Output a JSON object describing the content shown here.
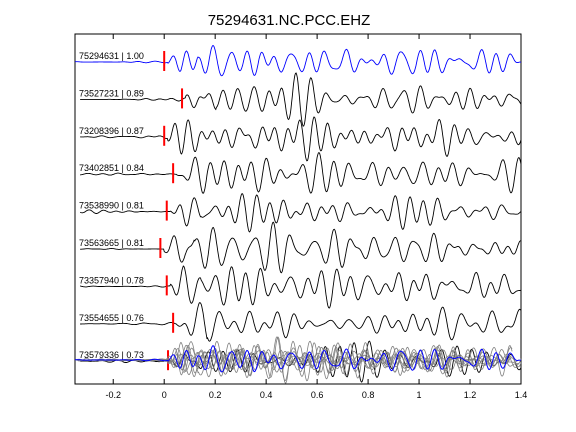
{
  "chart_data": {
    "type": "line",
    "title": "75294631.NC.PCC.EHZ",
    "xlabel": "",
    "ylabel": "",
    "xlim": [
      -0.35,
      1.4
    ],
    "xticks": [
      -0.2,
      0,
      0.2,
      0.4,
      0.6,
      0.8,
      1,
      1.2,
      1.4
    ],
    "xtick_labels": [
      "-0.2",
      "0",
      "0.2",
      "0.4",
      "0.6",
      "0.8",
      "1",
      "1.2",
      "1.4"
    ],
    "grid": false,
    "legend": "none",
    "colors": {
      "reference": "#0000ff",
      "trace": "#000000",
      "pick": "#ff0000",
      "overlay": "#808080"
    },
    "traces": [
      {
        "label": "75294631 | 1.00",
        "pick_time": 0.0
      },
      {
        "label": "73527231 | 0.89",
        "pick_time": 0.07
      },
      {
        "label": "73208396 | 0.87",
        "pick_time": 0.0
      },
      {
        "label": "73402851 | 0.84",
        "pick_time": 0.035
      },
      {
        "label": "73538990 | 0.81",
        "pick_time": 0.01
      },
      {
        "label": "73563665 | 0.81",
        "pick_time": -0.015
      },
      {
        "label": "73357940 | 0.78",
        "pick_time": 0.01
      },
      {
        "label": "73554655 | 0.76",
        "pick_time": 0.035
      },
      {
        "label": "73579336 | 0.73",
        "pick_time": 0.015
      }
    ]
  }
}
